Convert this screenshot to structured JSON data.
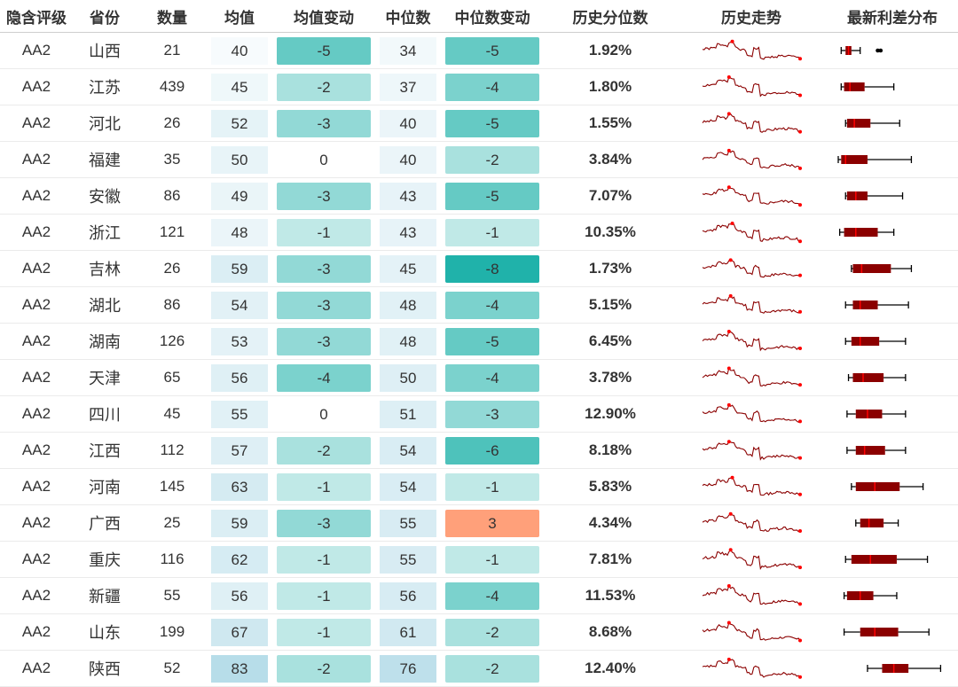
{
  "chart_data": {
    "type": "table",
    "columns": [
      "隐含评级",
      "省份",
      "数量",
      "均值",
      "均值变动",
      "中位数",
      "中位数变动",
      "历史分位数",
      "历史走势",
      "最新利差分布"
    ],
    "rows": [
      {
        "rating": "AA2",
        "province": "山西",
        "count": "21",
        "mean": "40",
        "mean_change": "-5",
        "median": "34",
        "median_change": "-5",
        "percentile": "1.92%",
        "box": [
          2,
          5,
          7,
          9,
          15
        ],
        "outliers": [
          27,
          29
        ]
      },
      {
        "rating": "AA2",
        "province": "江苏",
        "count": "439",
        "mean": "45",
        "mean_change": "-2",
        "median": "37",
        "median_change": "-4",
        "percentile": "1.80%",
        "box": [
          2,
          4,
          8,
          18,
          38
        ],
        "outliers": []
      },
      {
        "rating": "AA2",
        "province": "河北",
        "count": "26",
        "mean": "52",
        "mean_change": "-3",
        "median": "40",
        "median_change": "-5",
        "percentile": "1.55%",
        "box": [
          5,
          6,
          11,
          22,
          42
        ],
        "outliers": []
      },
      {
        "rating": "AA2",
        "province": "福建",
        "count": "35",
        "mean": "50",
        "mean_change": "0",
        "median": "40",
        "median_change": "-2",
        "percentile": "3.84%",
        "box": [
          0,
          2,
          5,
          20,
          50
        ],
        "outliers": []
      },
      {
        "rating": "AA2",
        "province": "安徽",
        "count": "86",
        "mean": "49",
        "mean_change": "-3",
        "median": "43",
        "median_change": "-5",
        "percentile": "7.07%",
        "box": [
          5,
          6,
          12,
          20,
          44
        ],
        "outliers": []
      },
      {
        "rating": "AA2",
        "province": "浙江",
        "count": "121",
        "mean": "48",
        "mean_change": "-1",
        "median": "43",
        "median_change": "-1",
        "percentile": "10.35%",
        "box": [
          1,
          4,
          12,
          27,
          38
        ],
        "outliers": []
      },
      {
        "rating": "AA2",
        "province": "吉林",
        "count": "26",
        "mean": "59",
        "mean_change": "-3",
        "median": "45",
        "median_change": "-8",
        "percentile": "1.73%",
        "box": [
          9,
          10,
          16,
          36,
          50
        ],
        "outliers": []
      },
      {
        "rating": "AA2",
        "province": "湖北",
        "count": "86",
        "mean": "54",
        "mean_change": "-3",
        "median": "48",
        "median_change": "-4",
        "percentile": "5.15%",
        "box": [
          5,
          10,
          15,
          27,
          48
        ],
        "outliers": []
      },
      {
        "rating": "AA2",
        "province": "湖南",
        "count": "126",
        "mean": "53",
        "mean_change": "-3",
        "median": "48",
        "median_change": "-5",
        "percentile": "6.45%",
        "box": [
          5,
          9,
          15,
          28,
          46
        ],
        "outliers": []
      },
      {
        "rating": "AA2",
        "province": "天津",
        "count": "65",
        "mean": "56",
        "mean_change": "-4",
        "median": "50",
        "median_change": "-4",
        "percentile": "3.78%",
        "box": [
          7,
          10,
          17,
          31,
          46
        ],
        "outliers": []
      },
      {
        "rating": "AA2",
        "province": "四川",
        "count": "45",
        "mean": "55",
        "mean_change": "0",
        "median": "51",
        "median_change": "-3",
        "percentile": "12.90%",
        "box": [
          6,
          12,
          20,
          30,
          46
        ],
        "outliers": []
      },
      {
        "rating": "AA2",
        "province": "江西",
        "count": "112",
        "mean": "57",
        "mean_change": "-2",
        "median": "54",
        "median_change": "-6",
        "percentile": "8.18%",
        "box": [
          6,
          12,
          18,
          32,
          46
        ],
        "outliers": []
      },
      {
        "rating": "AA2",
        "province": "河南",
        "count": "145",
        "mean": "63",
        "mean_change": "-1",
        "median": "54",
        "median_change": "-1",
        "percentile": "5.83%",
        "box": [
          9,
          12,
          25,
          42,
          58
        ],
        "outliers": []
      },
      {
        "rating": "AA2",
        "province": "广西",
        "count": "25",
        "mean": "59",
        "mean_change": "-3",
        "median": "55",
        "median_change": "3",
        "percentile": "4.34%",
        "box": [
          12,
          15,
          21,
          31,
          41
        ],
        "outliers": []
      },
      {
        "rating": "AA2",
        "province": "重庆",
        "count": "116",
        "mean": "62",
        "mean_change": "-1",
        "median": "55",
        "median_change": "-1",
        "percentile": "7.81%",
        "box": [
          5,
          9,
          22,
          40,
          61
        ],
        "outliers": []
      },
      {
        "rating": "AA2",
        "province": "新疆",
        "count": "55",
        "mean": "56",
        "mean_change": "-1",
        "median": "56",
        "median_change": "-4",
        "percentile": "11.53%",
        "box": [
          4,
          6,
          15,
          24,
          40
        ],
        "outliers": []
      },
      {
        "rating": "AA2",
        "province": "山东",
        "count": "199",
        "mean": "67",
        "mean_change": "-1",
        "median": "61",
        "median_change": "-2",
        "percentile": "8.68%",
        "box": [
          4,
          15,
          25,
          41,
          62
        ],
        "outliers": []
      },
      {
        "rating": "AA2",
        "province": "陕西",
        "count": "52",
        "mean": "83",
        "mean_change": "-2",
        "median": "76",
        "median_change": "-2",
        "percentile": "12.40%",
        "box": [
          20,
          30,
          38,
          48,
          70
        ],
        "outliers": []
      }
    ],
    "mean_range": [
      40,
      90
    ],
    "median_range": [
      30,
      90
    ],
    "change_min": -8,
    "box_range": [
      0,
      74
    ],
    "colors": {
      "teal": "#20b2aa",
      "positive": "#ffa07a",
      "blue": "#add8e6",
      "spark_line": "#8b0000",
      "spark_dot": "#ff0000",
      "box_fill": "#8b0000",
      "box_median": "#ff0000",
      "whisker": "#000000"
    }
  }
}
